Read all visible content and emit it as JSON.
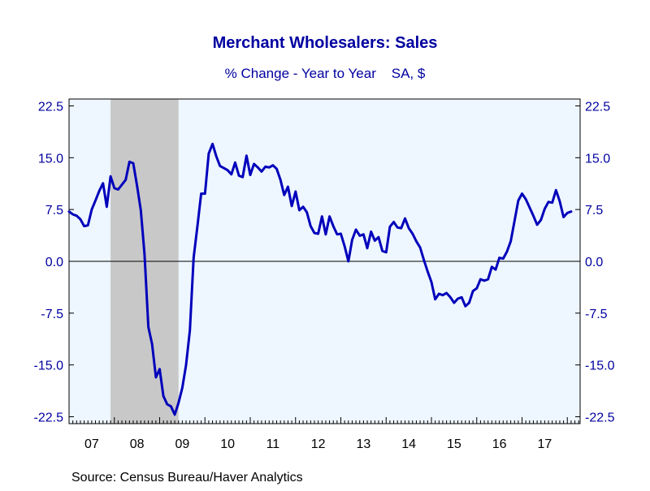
{
  "chart_data": {
    "type": "line",
    "title": "Merchant Wholesalers: Sales",
    "subtitle": "% Change - Year to Year    SA, $",
    "source": "Source:  Census Bureau/Haver Analytics",
    "ylim": [
      -23.5,
      23.5
    ],
    "yticks": [
      "22.5",
      "15.0",
      "7.5",
      "0.0",
      "-7.5",
      "-15.0",
      "-22.5"
    ],
    "ytick_values": [
      22.5,
      15.0,
      7.5,
      0.0,
      -7.5,
      -15.0,
      -22.5
    ],
    "x_range": [
      2007.0,
      2017.917
    ],
    "xtick_labels": [
      "07",
      "08",
      "09",
      "10",
      "11",
      "12",
      "13",
      "14",
      "15",
      "16",
      "17"
    ],
    "recession": [
      2007.917,
      2009.417
    ],
    "grid": false,
    "colors": {
      "plot_bg": "#eef6ff",
      "recession": "#c8c8c8",
      "line": "#0000bb",
      "text": "#0000a0",
      "axis": "#000000"
    },
    "series": [
      {
        "values": [
          [
            2007.0,
            7.2
          ],
          [
            2007.083,
            6.8
          ],
          [
            2007.167,
            6.6
          ],
          [
            2007.25,
            6.1
          ],
          [
            2007.333,
            5.1
          ],
          [
            2007.417,
            5.2
          ],
          [
            2007.5,
            7.5
          ],
          [
            2007.583,
            8.8
          ],
          [
            2007.667,
            10.2
          ],
          [
            2007.75,
            11.3
          ],
          [
            2007.833,
            7.9
          ],
          [
            2007.917,
            12.3
          ],
          [
            2008.0,
            10.6
          ],
          [
            2008.083,
            10.4
          ],
          [
            2008.167,
            11.1
          ],
          [
            2008.25,
            11.8
          ],
          [
            2008.333,
            14.4
          ],
          [
            2008.417,
            14.2
          ],
          [
            2008.5,
            11.0
          ],
          [
            2008.583,
            7.4
          ],
          [
            2008.667,
            1.0
          ],
          [
            2008.75,
            -9.5
          ],
          [
            2008.833,
            -12.0
          ],
          [
            2008.917,
            -16.8
          ],
          [
            2009.0,
            -15.6
          ],
          [
            2009.083,
            -19.5
          ],
          [
            2009.167,
            -20.7
          ],
          [
            2009.25,
            -21.0
          ],
          [
            2009.333,
            -22.2
          ],
          [
            2009.417,
            -20.5
          ],
          [
            2009.5,
            -18.3
          ],
          [
            2009.583,
            -15.0
          ],
          [
            2009.667,
            -10.0
          ],
          [
            2009.75,
            0.5
          ],
          [
            2009.833,
            5.0
          ],
          [
            2009.917,
            9.8
          ],
          [
            2010.0,
            9.8
          ],
          [
            2010.083,
            15.6
          ],
          [
            2010.167,
            17.0
          ],
          [
            2010.25,
            15.2
          ],
          [
            2010.333,
            13.8
          ],
          [
            2010.417,
            13.5
          ],
          [
            2010.5,
            13.2
          ],
          [
            2010.583,
            12.6
          ],
          [
            2010.667,
            14.3
          ],
          [
            2010.75,
            12.4
          ],
          [
            2010.833,
            12.2
          ],
          [
            2010.917,
            15.3
          ],
          [
            2011.0,
            12.5
          ],
          [
            2011.083,
            14.1
          ],
          [
            2011.167,
            13.6
          ],
          [
            2011.25,
            13.0
          ],
          [
            2011.333,
            13.7
          ],
          [
            2011.417,
            13.6
          ],
          [
            2011.5,
            13.9
          ],
          [
            2011.583,
            13.4
          ],
          [
            2011.667,
            11.8
          ],
          [
            2011.75,
            9.6
          ],
          [
            2011.833,
            10.8
          ],
          [
            2011.917,
            8.0
          ],
          [
            2012.0,
            10.1
          ],
          [
            2012.083,
            7.4
          ],
          [
            2012.167,
            7.9
          ],
          [
            2012.25,
            7.1
          ],
          [
            2012.333,
            5.1
          ],
          [
            2012.417,
            4.1
          ],
          [
            2012.5,
            4.0
          ],
          [
            2012.583,
            6.5
          ],
          [
            2012.667,
            3.9
          ],
          [
            2012.75,
            6.5
          ],
          [
            2012.833,
            5.1
          ],
          [
            2012.917,
            3.9
          ],
          [
            2013.0,
            4.0
          ],
          [
            2013.083,
            2.2
          ],
          [
            2013.167,
            0.0
          ],
          [
            2013.25,
            3.1
          ],
          [
            2013.333,
            4.6
          ],
          [
            2013.417,
            3.7
          ],
          [
            2013.5,
            3.9
          ],
          [
            2013.583,
            1.9
          ],
          [
            2013.667,
            4.3
          ],
          [
            2013.75,
            3.0
          ],
          [
            2013.833,
            3.5
          ],
          [
            2013.917,
            1.5
          ],
          [
            2014.0,
            1.3
          ],
          [
            2014.083,
            5.0
          ],
          [
            2014.167,
            5.7
          ],
          [
            2014.25,
            4.9
          ],
          [
            2014.333,
            4.8
          ],
          [
            2014.417,
            6.2
          ],
          [
            2014.5,
            4.8
          ],
          [
            2014.583,
            4.0
          ],
          [
            2014.667,
            2.9
          ],
          [
            2014.75,
            2.0
          ],
          [
            2014.833,
            0.2
          ],
          [
            2014.917,
            -1.5
          ],
          [
            2015.0,
            -3.0
          ],
          [
            2015.083,
            -5.5
          ],
          [
            2015.167,
            -4.7
          ],
          [
            2015.25,
            -4.9
          ],
          [
            2015.333,
            -4.6
          ],
          [
            2015.417,
            -5.2
          ],
          [
            2015.5,
            -6.0
          ],
          [
            2015.583,
            -5.4
          ],
          [
            2015.667,
            -5.2
          ],
          [
            2015.75,
            -6.5
          ],
          [
            2015.833,
            -6.0
          ],
          [
            2015.917,
            -4.3
          ],
          [
            2016.0,
            -3.9
          ],
          [
            2016.083,
            -2.6
          ],
          [
            2016.167,
            -2.8
          ],
          [
            2016.25,
            -2.6
          ],
          [
            2016.333,
            -0.8
          ],
          [
            2016.417,
            -1.2
          ],
          [
            2016.5,
            0.5
          ],
          [
            2016.583,
            0.4
          ],
          [
            2016.667,
            1.4
          ],
          [
            2016.75,
            2.9
          ],
          [
            2016.833,
            5.8
          ],
          [
            2016.917,
            8.8
          ],
          [
            2017.0,
            9.8
          ],
          [
            2017.083,
            9.0
          ],
          [
            2017.167,
            7.8
          ],
          [
            2017.25,
            6.6
          ],
          [
            2017.333,
            5.3
          ],
          [
            2017.417,
            6.0
          ],
          [
            2017.5,
            7.6
          ],
          [
            2017.583,
            8.6
          ],
          [
            2017.667,
            8.5
          ],
          [
            2017.75,
            10.3
          ],
          [
            2017.833,
            8.7
          ],
          [
            2017.917,
            6.4
          ],
          [
            2018.0,
            7.0
          ],
          [
            2018.083,
            7.2
          ]
        ]
      }
    ]
  }
}
